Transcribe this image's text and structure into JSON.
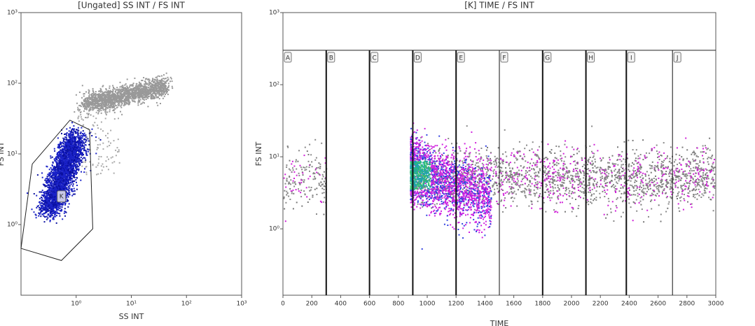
{
  "chart_data": [
    {
      "type": "scatter",
      "title": "[Ungated] SS INT / FS INT",
      "x_label": "SS INT",
      "y_label": "FS INT",
      "log_x": true,
      "log_y": true,
      "xlim": [
        0.1,
        1000
      ],
      "ylim": [
        0.1,
        1000
      ],
      "xticks": [
        {
          "value": 1,
          "label": "10⁰"
        },
        {
          "value": 10,
          "label": "10¹"
        },
        {
          "value": 100,
          "label": "10²"
        },
        {
          "value": 1000,
          "label": "10³"
        }
      ],
      "yticks": [
        {
          "value": 1,
          "label": "10⁰"
        },
        {
          "value": 10,
          "label": "10¹"
        },
        {
          "value": 100,
          "label": "10²"
        },
        {
          "value": 1000,
          "label": "10³"
        }
      ],
      "gate": {
        "name": "K",
        "label_x": 0.54,
        "label_y": 2.5,
        "x": [
          0.1,
          0.16,
          0.77,
          1.75,
          2.0,
          0.54
        ],
        "y": [
          0.46,
          7.2,
          30,
          22,
          0.87,
          0.31
        ]
      }
    },
    {
      "type": "scatter",
      "title": "[K] TIME / FS INT",
      "x_label": "TIME",
      "y_label": "FS INT",
      "log_y": true,
      "xlim": [
        0,
        3000
      ],
      "ylim": [
        0.12,
        1000
      ],
      "xticks": [
        0,
        200,
        400,
        600,
        800,
        1000,
        1200,
        1400,
        1600,
        1800,
        2000,
        2200,
        2400,
        2600,
        2800,
        3000
      ],
      "yticks": [
        {
          "value": 1,
          "label": "10⁰"
        },
        {
          "value": 10,
          "label": "10¹"
        },
        {
          "value": 100,
          "label": "10²"
        },
        {
          "value": 1000,
          "label": "10³"
        }
      ],
      "region_top": 300,
      "regions": [
        {
          "name": "A",
          "start": 0
        },
        {
          "name": "B",
          "start": 300
        },
        {
          "name": "C",
          "start": 600
        },
        {
          "name": "D",
          "start": 900
        },
        {
          "name": "E",
          "start": 1200
        },
        {
          "name": "F",
          "start": 1500
        },
        {
          "name": "G",
          "start": 1800
        },
        {
          "name": "H",
          "start": 2100
        },
        {
          "name": "I",
          "start": 2380
        },
        {
          "name": "J",
          "start": 2700
        }
      ]
    }
  ]
}
